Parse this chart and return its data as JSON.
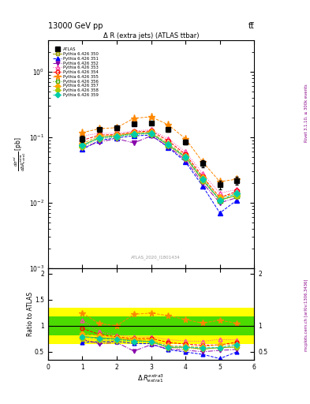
{
  "title_top": "13000 GeV pp",
  "title_top_right": "tt̅",
  "plot_title": "Δ R (extra jets) (ATLAS ttbar)",
  "xlabel": "Δ R^{extra3}_{extra1}",
  "ylabel_main": "dσ^{nd}/dΔ R^{extra}_{extra1} [pb]",
  "ylabel_ratio": "Ratio to ATLAS",
  "watermark": "ATLAS_2020_I1801434",
  "right_label_top": "Rivet 3.1.10, ≥ 300k events",
  "right_label_bot": "mcplots.cern.ch [arXiv:1306.3436]",
  "x_values": [
    1.0,
    1.5,
    2.0,
    2.5,
    3.0,
    3.5,
    4.0,
    4.5,
    5.0,
    5.5
  ],
  "atlas_y": [
    0.095,
    0.13,
    0.14,
    0.16,
    0.165,
    0.13,
    0.085,
    0.04,
    0.019,
    0.022
  ],
  "atlas_yerr": [
    0.01,
    0.01,
    0.01,
    0.01,
    0.01,
    0.01,
    0.008,
    0.005,
    0.003,
    0.003
  ],
  "series": [
    {
      "label": "Pythia 6.426 350",
      "color": "#999900",
      "marker": "s",
      "marker_fill": "none",
      "linestyle": "-",
      "y": [
        0.075,
        0.1,
        0.105,
        0.115,
        0.115,
        0.075,
        0.05,
        0.022,
        0.011,
        0.013
      ]
    },
    {
      "label": "Pythia 6.426 351",
      "color": "#0000ff",
      "marker": "^",
      "marker_fill": "full",
      "linestyle": "--",
      "y": [
        0.065,
        0.09,
        0.098,
        0.105,
        0.108,
        0.07,
        0.042,
        0.018,
        0.007,
        0.011
      ]
    },
    {
      "label": "Pythia 6.426 352",
      "color": "#8800aa",
      "marker": "v",
      "marker_fill": "full",
      "linestyle": "-.",
      "y": [
        0.07,
        0.085,
        0.095,
        0.082,
        0.105,
        0.072,
        0.045,
        0.02,
        0.01,
        0.012
      ]
    },
    {
      "label": "Pythia 6.426 353",
      "color": "#ff44aa",
      "marker": "^",
      "marker_fill": "none",
      "linestyle": ":",
      "y": [
        0.105,
        0.115,
        0.115,
        0.125,
        0.13,
        0.095,
        0.06,
        0.028,
        0.014,
        0.016
      ]
    },
    {
      "label": "Pythia 6.426 354",
      "color": "#ff0000",
      "marker": "o",
      "marker_fill": "none",
      "linestyle": "--",
      "y": [
        0.09,
        0.108,
        0.11,
        0.12,
        0.125,
        0.088,
        0.055,
        0.025,
        0.012,
        0.015
      ]
    },
    {
      "label": "Pythia 6.426 355",
      "color": "#ff8800",
      "marker": "*",
      "marker_fill": "full",
      "linestyle": "--",
      "y": [
        0.118,
        0.135,
        0.14,
        0.195,
        0.205,
        0.155,
        0.095,
        0.042,
        0.021,
        0.023
      ]
    },
    {
      "label": "Pythia 6.426 356",
      "color": "#44aa00",
      "marker": "s",
      "marker_fill": "none",
      "linestyle": ":",
      "y": [
        0.075,
        0.1,
        0.105,
        0.112,
        0.115,
        0.078,
        0.05,
        0.023,
        0.011,
        0.013
      ]
    },
    {
      "label": "Pythia 6.426 357",
      "color": "#ffaa00",
      "marker": "D",
      "marker_fill": "full",
      "linestyle": "--",
      "y": [
        0.08,
        0.105,
        0.108,
        0.118,
        0.12,
        0.08,
        0.052,
        0.024,
        0.012,
        0.014
      ]
    },
    {
      "label": "Pythia 6.426 358",
      "color": "#aacc00",
      "marker": "D",
      "marker_fill": "full",
      "linestyle": ":",
      "y": [
        0.072,
        0.095,
        0.1,
        0.11,
        0.112,
        0.075,
        0.048,
        0.022,
        0.011,
        0.013
      ]
    },
    {
      "label": "Pythia 6.426 359",
      "color": "#00ccaa",
      "marker": "D",
      "marker_fill": "full",
      "linestyle": "--",
      "y": [
        0.075,
        0.098,
        0.103,
        0.112,
        0.115,
        0.077,
        0.05,
        0.023,
        0.011,
        0.014
      ]
    }
  ],
  "yellow_lo": 0.65,
  "yellow_hi": 1.35,
  "green_lo": 0.82,
  "green_hi": 1.18,
  "xlim": [
    0,
    6
  ],
  "ylim_main": [
    0.001,
    3
  ],
  "ylim_ratio": [
    0.35,
    2.1
  ],
  "ratio_yticks": [
    0.5,
    1.0,
    1.5,
    2.0
  ]
}
